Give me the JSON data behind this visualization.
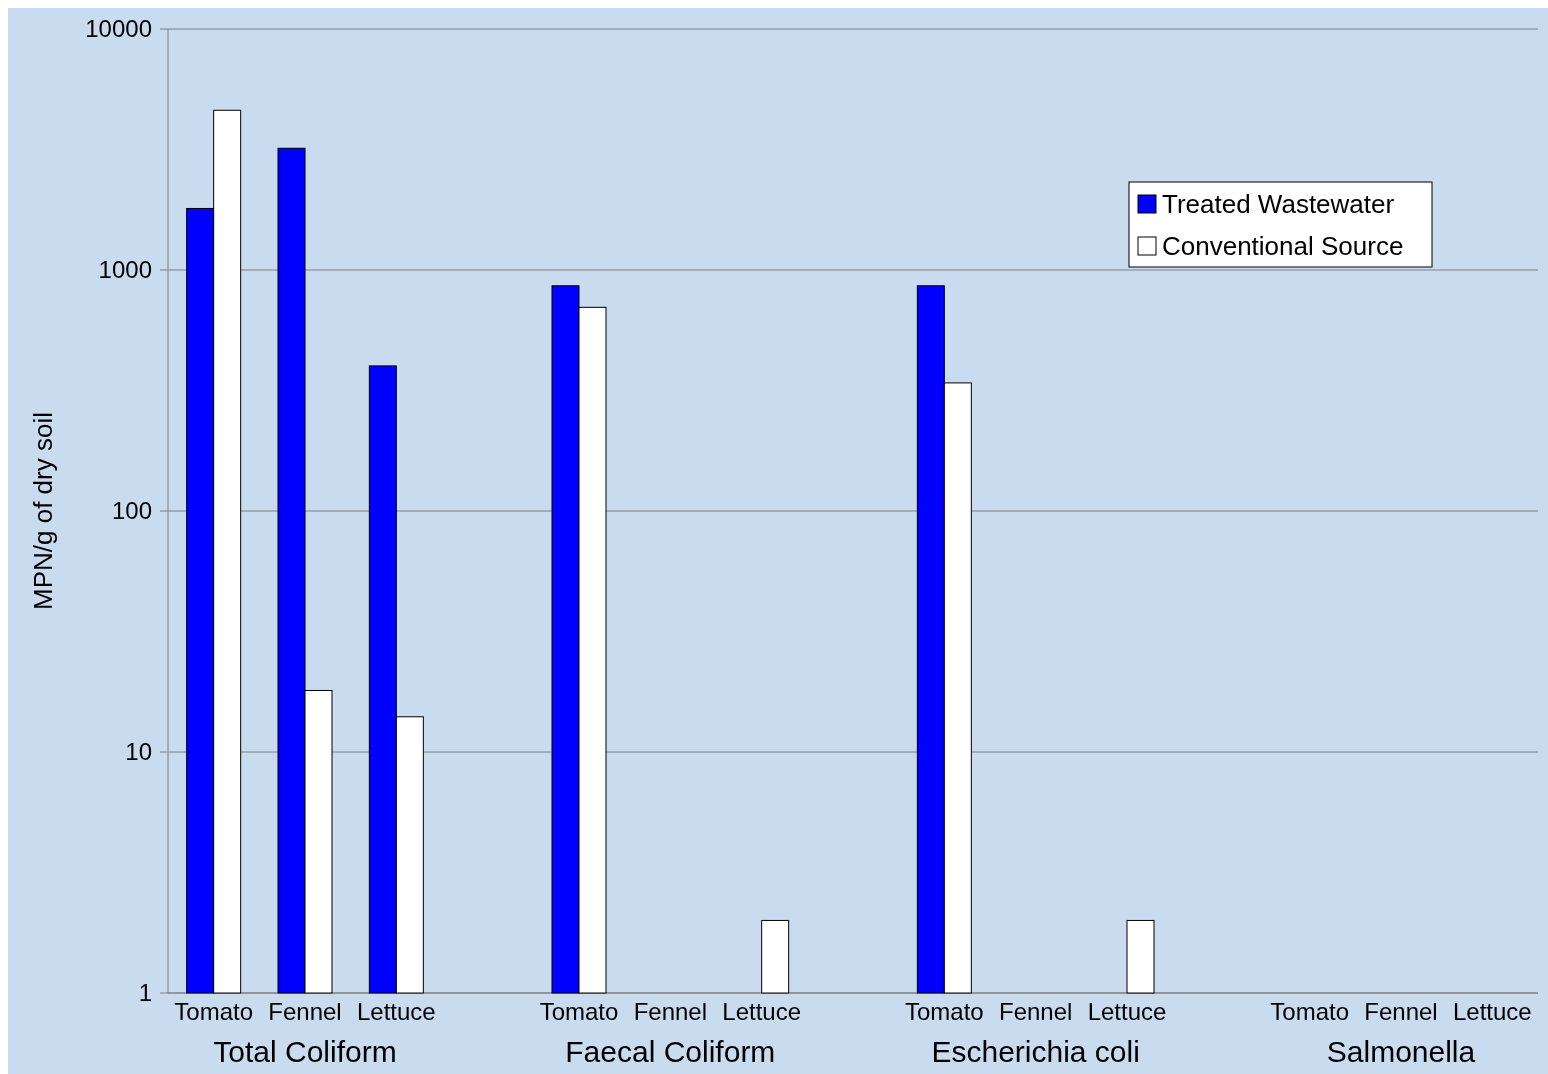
{
  "chart_data": {
    "type": "bar",
    "ylabel": "MPN/g of dry soil",
    "categories": [
      "Tomato",
      "Fennel",
      "Lettuce",
      "Tomato",
      "Fennel",
      "Lettuce",
      "Tomato",
      "Fennel",
      "Lettuce",
      "Tomato",
      "Fennel",
      "Lettuce"
    ],
    "series": [
      {
        "name": "Treated Wastewater",
        "color": "#0000ff",
        "values": [
          1800,
          3200,
          400,
          860,
          null,
          null,
          860,
          null,
          null,
          null,
          null,
          null
        ]
      },
      {
        "name": "Conventional Source",
        "color": "#ffffff",
        "values": [
          4600,
          18,
          14,
          700,
          null,
          2,
          340,
          null,
          2,
          null,
          null,
          null
        ]
      }
    ],
    "annotations": [
      "Total Coliform",
      "Faecal Coliform",
      "Escherichia coli",
      "Salmonella"
    ],
    "log": true,
    "ylim": [
      1,
      10000
    ],
    "yticks": [
      1,
      10,
      100,
      1000,
      10000
    ],
    "grid": "y",
    "legend": "top right"
  }
}
